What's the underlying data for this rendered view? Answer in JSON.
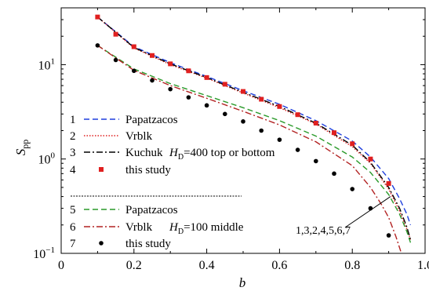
{
  "chart_data": {
    "type": "line",
    "xlabel": "b",
    "ylabel": "S",
    "ylabel_sub": "pp",
    "xlim": [
      0,
      1
    ],
    "ylim": [
      0.1,
      40
    ],
    "y_scale": "log",
    "x_ticks": [
      0,
      0.2,
      0.4,
      0.6,
      0.8,
      1.0
    ],
    "x_tick_labels": [
      "0",
      "0.2",
      "0.4",
      "0.6",
      "0.8",
      "1.0"
    ],
    "y_tick_labels": [
      {
        "value": 10,
        "base": "10",
        "exp": "1"
      },
      {
        "value": 1,
        "base": "10",
        "exp": "0"
      },
      {
        "value": 0.1,
        "base": "10",
        "exp": "−1"
      }
    ],
    "grid": false,
    "legend": [
      {
        "num": "1",
        "label": "Papatzacos",
        "style": "dashed",
        "color": "#1f3fdd"
      },
      {
        "num": "2",
        "label": "Vrblk",
        "style": "dotted",
        "color": "#e02020"
      },
      {
        "num": "3",
        "label": "Kuchuk",
        "style": "dashdot",
        "color": "#000000"
      },
      {
        "num": "4",
        "label": "this study",
        "style": "square-marker",
        "color": "#e02020"
      },
      {
        "num": "5",
        "label": "Papatzacos",
        "style": "dashed",
        "color": "#2a9a2a"
      },
      {
        "num": "6",
        "label": "Vrblk",
        "style": "dashdot",
        "color": "#b22222"
      },
      {
        "num": "7",
        "label": "this study",
        "style": "circle-marker",
        "color": "#000000"
      }
    ],
    "group_labels": [
      {
        "prefix": "H",
        "sub": "D",
        "text": "=400 top or bottom"
      },
      {
        "prefix": "H",
        "sub": "D",
        "text": "=100 middle"
      }
    ],
    "annotation": "1,3,2,4,5,6,7",
    "series": [
      {
        "name": "Papatzacos",
        "group": "HD=400",
        "style": "dashed",
        "color": "#1f3fdd",
        "x": [
          0.1,
          0.2,
          0.3,
          0.4,
          0.5,
          0.6,
          0.7,
          0.8,
          0.85,
          0.9,
          0.93,
          0.95,
          0.96
        ],
        "y": [
          32,
          15.5,
          10.5,
          7.5,
          5.3,
          3.8,
          2.55,
          1.55,
          1.05,
          0.62,
          0.38,
          0.26,
          0.2
        ]
      },
      {
        "name": "Vrblk",
        "group": "HD=400",
        "style": "dotted",
        "color": "#e02020",
        "x": [
          0.1,
          0.2,
          0.3,
          0.4,
          0.5,
          0.6,
          0.7,
          0.8,
          0.85,
          0.9,
          0.93,
          0.95,
          0.96
        ],
        "y": [
          32,
          15,
          10,
          7.2,
          5.0,
          3.5,
          2.35,
          1.35,
          0.9,
          0.48,
          0.28,
          0.18,
          0.14
        ]
      },
      {
        "name": "Kuchuk",
        "group": "HD=400",
        "style": "dashdot",
        "color": "#000000",
        "x": [
          0.1,
          0.2,
          0.3,
          0.4,
          0.5,
          0.6,
          0.7,
          0.8,
          0.85,
          0.9,
          0.93,
          0.95,
          0.96
        ],
        "y": [
          32,
          15.2,
          10.2,
          7.3,
          5.1,
          3.6,
          2.4,
          1.4,
          0.92,
          0.5,
          0.3,
          0.19,
          0.14
        ]
      },
      {
        "name": "this study",
        "group": "HD=400",
        "style": "square-marker",
        "color": "#e02020",
        "x": [
          0.1,
          0.15,
          0.2,
          0.25,
          0.3,
          0.35,
          0.4,
          0.45,
          0.5,
          0.55,
          0.6,
          0.65,
          0.7,
          0.75,
          0.8,
          0.85,
          0.9
        ],
        "y": [
          32,
          21,
          15.5,
          12.5,
          10.2,
          8.6,
          7.3,
          6.2,
          5.2,
          4.3,
          3.6,
          2.95,
          2.4,
          1.9,
          1.45,
          1.0,
          0.55
        ]
      },
      {
        "name": "Papatzacos",
        "group": "HD=100",
        "style": "dashed",
        "color": "#2a9a2a",
        "x": [
          0.1,
          0.2,
          0.3,
          0.4,
          0.5,
          0.6,
          0.7,
          0.8,
          0.85,
          0.9,
          0.93,
          0.95,
          0.96
        ],
        "y": [
          16,
          9.0,
          6.3,
          4.7,
          3.5,
          2.55,
          1.75,
          1.05,
          0.72,
          0.42,
          0.26,
          0.17,
          0.13
        ]
      },
      {
        "name": "Vrblk",
        "group": "HD=100",
        "style": "dashdot",
        "color": "#b22222",
        "x": [
          0.1,
          0.2,
          0.3,
          0.4,
          0.5,
          0.6,
          0.7,
          0.8,
          0.85,
          0.88,
          0.9,
          0.92,
          0.935
        ],
        "y": [
          16,
          8.7,
          6.0,
          4.4,
          3.2,
          2.3,
          1.52,
          0.85,
          0.5,
          0.33,
          0.24,
          0.15,
          0.1
        ]
      },
      {
        "name": "this study",
        "group": "HD=100",
        "style": "circle-marker",
        "color": "#000000",
        "x": [
          0.1,
          0.15,
          0.2,
          0.25,
          0.3,
          0.35,
          0.4,
          0.45,
          0.5,
          0.55,
          0.6,
          0.65,
          0.7,
          0.75,
          0.8,
          0.85,
          0.9
        ],
        "y": [
          16,
          11.2,
          8.6,
          6.8,
          5.5,
          4.5,
          3.7,
          3.0,
          2.5,
          2.0,
          1.6,
          1.25,
          0.95,
          0.7,
          0.48,
          0.3,
          0.155
        ]
      }
    ]
  }
}
